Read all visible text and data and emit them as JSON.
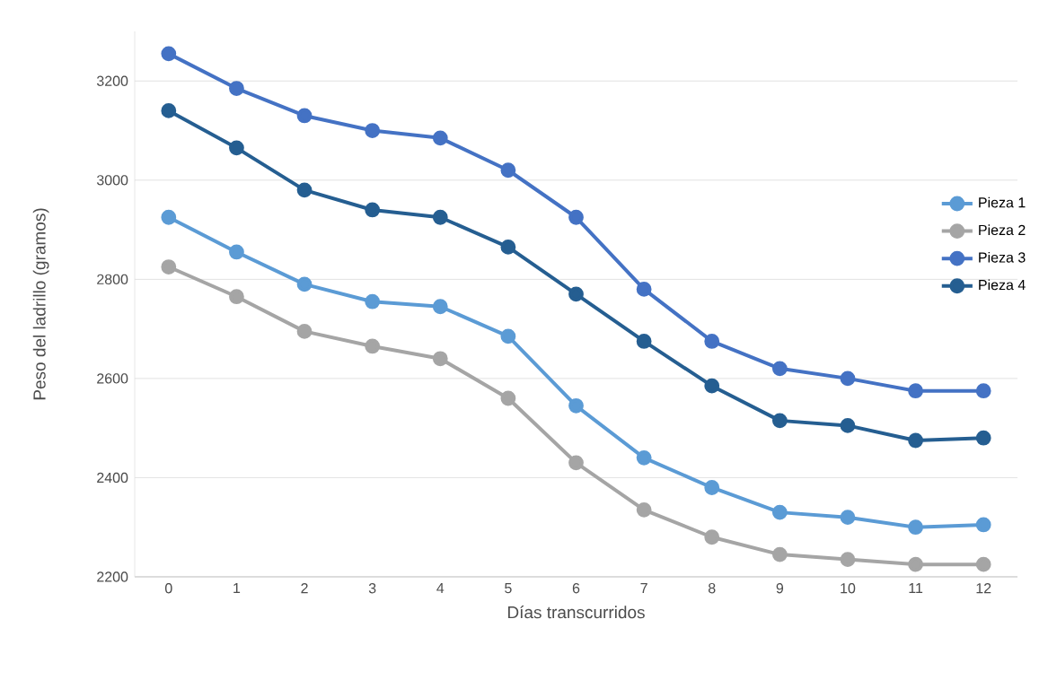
{
  "chart_data": {
    "type": "line",
    "xlabel": "Días transcurridos",
    "ylabel": "Peso del ladrillo (gramos)",
    "categories": [
      "0",
      "1",
      "2",
      "3",
      "4",
      "5",
      "6",
      "7",
      "8",
      "9",
      "10",
      "11",
      "12"
    ],
    "series": [
      {
        "name": "Pieza 1",
        "color": "#5b9bd5",
        "values": [
          2925,
          2855,
          2790,
          2755,
          2745,
          2685,
          2545,
          2440,
          2380,
          2330,
          2320,
          2300,
          2305
        ]
      },
      {
        "name": "Pieza 2",
        "color": "#a5a5a5",
        "values": [
          2825,
          2765,
          2695,
          2665,
          2640,
          2560,
          2430,
          2335,
          2280,
          2245,
          2235,
          2225,
          2225
        ]
      },
      {
        "name": "Pieza 3",
        "color": "#4472c4",
        "values": [
          3255,
          3185,
          3130,
          3100,
          3085,
          3020,
          2925,
          2780,
          2675,
          2620,
          2600,
          2575,
          2575
        ]
      },
      {
        "name": "Pieza 4",
        "color": "#255e91",
        "values": [
          3140,
          3065,
          2980,
          2940,
          2925,
          2865,
          2770,
          2675,
          2585,
          2515,
          2505,
          2475,
          2480
        ]
      }
    ],
    "ylim": [
      2200,
      3300
    ],
    "yticks": [
      2200,
      2400,
      2600,
      2800,
      3000,
      3200
    ],
    "grid": "y",
    "legend": "right",
    "marker": "circle",
    "line_style": "solid"
  }
}
